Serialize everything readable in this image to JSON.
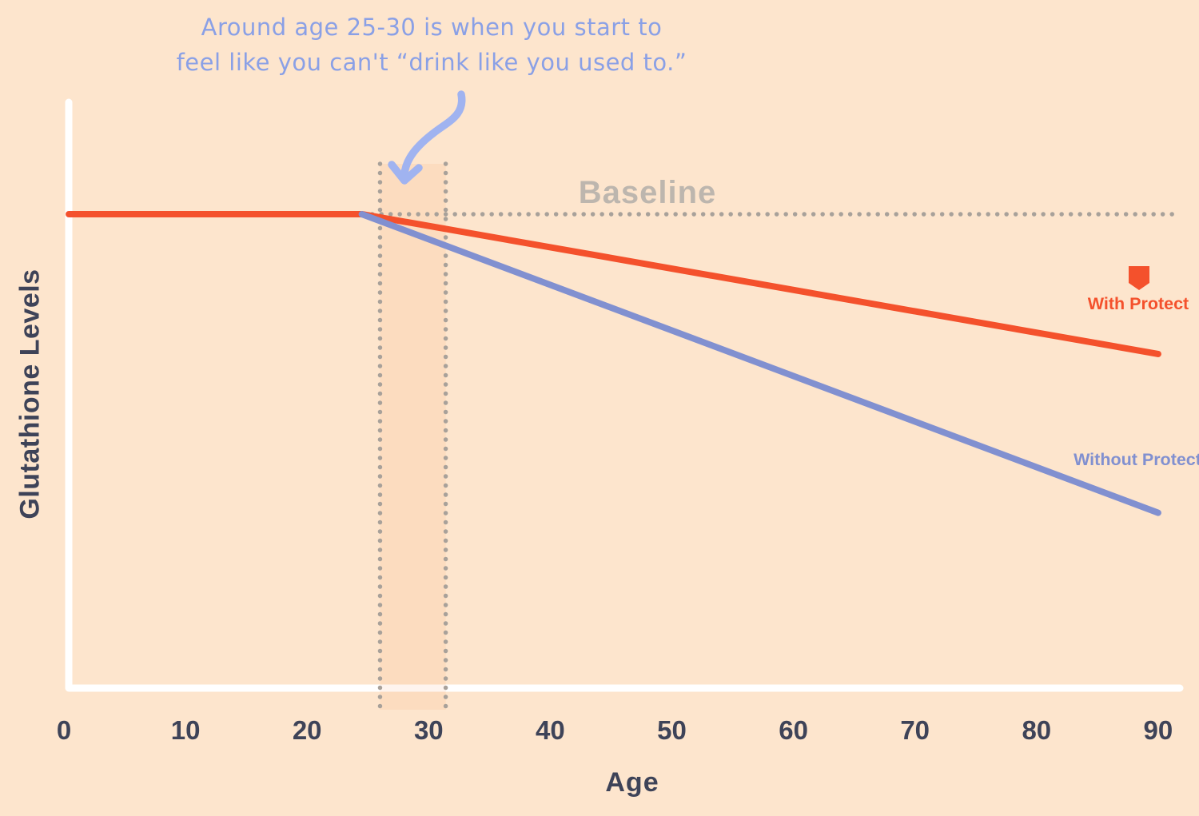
{
  "colors": {
    "background": "#fde5cd",
    "with_protect": "#f4512c",
    "without_protect": "#8190d0",
    "annotation_text": "#8aa0e6",
    "arrow": "#a0b3f0",
    "axis_text": "#3e4358",
    "dotted_gray": "#a8a19a",
    "baseline_label": "#bdb6ae",
    "band_fill": "rgba(243,112,33,0.08)",
    "axis_line": "#ffffff"
  },
  "annotation": {
    "line1": "Around age 25-30 is when you start to",
    "line2": "feel like you can't “drink like you used to.”"
  },
  "legend": {
    "with_protect": "With Protect",
    "without_protect": "Without Protect"
  },
  "chart_data": {
    "type": "line",
    "title": "",
    "xlabel": "Age",
    "ylabel": "Glutathione Levels",
    "x_ticks": [
      0,
      10,
      20,
      30,
      40,
      50,
      60,
      70,
      80,
      90
    ],
    "xlim": [
      0,
      92
    ],
    "ylim": [
      0,
      124
    ],
    "grid": false,
    "legend_position": "right-inline",
    "baseline": {
      "label": "Baseline",
      "value": 100,
      "x_start": 24.6,
      "x_end": 91.8,
      "style": "dotted"
    },
    "highlight_band": {
      "x_start": 26,
      "x_end": 31.4,
      "note": "age range where annotation arrow points"
    },
    "series": [
      {
        "name": "With Protect",
        "color": "#f4512c",
        "x": [
          0.4,
          24.5,
          90
        ],
        "values": [
          100,
          100,
          70.5
        ]
      },
      {
        "name": "Without Protect",
        "color": "#8190d0",
        "x": [
          24.5,
          90
        ],
        "values": [
          100,
          37
        ]
      }
    ]
  }
}
